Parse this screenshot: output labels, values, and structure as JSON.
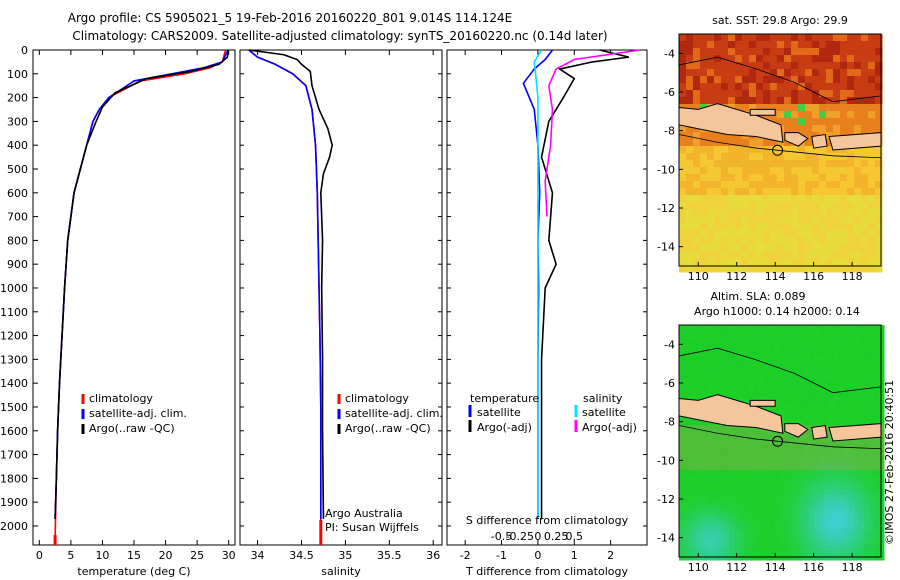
{
  "header": {
    "line1": "Argo profile: CS 5905021_5 19-Feb-2016 20160220_801 9.014S 114.124E",
    "line2": "Climatology: CARS2009. Satellite-adjusted climatology: synTS_20160220.nc (0.14d later)"
  },
  "colors": {
    "climatology": "#ff0000",
    "satellite": "#0000ff",
    "argo": "#000000",
    "sat_salinity": "#00e5ff",
    "argo_salinity": "#ff00ff",
    "land": "#f5c59b"
  },
  "chart_data": [
    {
      "type": "line",
      "id": "temperature",
      "xlabel": "temperature (deg C)",
      "ylabel": "",
      "xlim": [
        -1,
        31
      ],
      "ylim": [
        2080,
        0
      ],
      "xticks": [
        "0",
        "5",
        "10",
        "15",
        "20",
        "25",
        "30"
      ],
      "yticks": [
        "0",
        "100",
        "200",
        "300",
        "400",
        "500",
        "600",
        "700",
        "800",
        "900",
        "1000",
        "1100",
        "1200",
        "1300",
        "1400",
        "1500",
        "1600",
        "1700",
        "1800",
        "1900",
        "2000"
      ],
      "legend": {
        "placement": "lower-center",
        "entries": [
          "climatology",
          "satellite-adj. clim.",
          "Argo(..raw -QC)"
        ]
      },
      "series": [
        {
          "name": "climatology",
          "x": [
            29.5,
            29,
            27,
            23,
            16,
            11,
            9.5,
            8.5,
            7.5,
            6.5,
            5.5,
            5,
            4.5,
            4,
            3.6,
            3.2,
            2.9,
            2.7,
            2.5
          ],
          "y": [
            0,
            50,
            75,
            100,
            130,
            200,
            250,
            300,
            400,
            500,
            600,
            700,
            800,
            1000,
            1200,
            1400,
            1600,
            1800,
            2060
          ]
        },
        {
          "name": "satellite-adj. clim.",
          "x": [
            29.9,
            29,
            26,
            21,
            15,
            11,
            9.5,
            8.5,
            7.5,
            6.5,
            5.5,
            5,
            4.5,
            4,
            3.6,
            3.2,
            2.9,
            2.7,
            2.5
          ],
          "y": [
            0,
            50,
            75,
            100,
            130,
            200,
            250,
            300,
            400,
            500,
            600,
            700,
            800,
            1000,
            1200,
            1400,
            1600,
            1800,
            1970
          ]
        },
        {
          "name": "Argo(..raw -QC)",
          "x": [
            29.9,
            29.8,
            28.5,
            24,
            17,
            12,
            10,
            9,
            7.5,
            6.5,
            5.5,
            5,
            4.5,
            4,
            3.6,
            3.2,
            2.9,
            2.7,
            2.5
          ],
          "y": [
            0,
            30,
            60,
            90,
            120,
            180,
            240,
            300,
            400,
            500,
            600,
            700,
            800,
            1000,
            1200,
            1400,
            1600,
            1800,
            1970
          ]
        }
      ]
    },
    {
      "type": "line",
      "id": "salinity",
      "xlabel": "salinity",
      "xlim": [
        33.8,
        36.1
      ],
      "ylim": [
        2080,
        0
      ],
      "xticks": [
        "34",
        "34.5",
        "35",
        "35.5",
        "36"
      ],
      "legend": {
        "placement": "lower-center",
        "entries": [
          "climatology",
          "satellite-adj. clim.",
          "Argo(..raw -QC)"
        ]
      },
      "annotations": [
        "Argo Australia",
        "PI: Susan Wijffels"
      ],
      "series": [
        {
          "name": "climatology",
          "x": [
            33.9,
            34.0,
            34.2,
            34.4,
            34.55,
            34.62,
            34.66,
            34.68,
            34.69,
            34.7,
            34.71,
            34.72,
            34.72,
            34.72
          ],
          "y": [
            0,
            30,
            60,
            100,
            150,
            250,
            400,
            600,
            800,
            1000,
            1200,
            1500,
            1800,
            2060
          ]
        },
        {
          "name": "satellite-adj. clim.",
          "x": [
            33.9,
            34.0,
            34.2,
            34.4,
            34.55,
            34.62,
            34.66,
            34.68,
            34.69,
            34.7,
            34.71,
            34.72,
            34.72,
            34.72
          ],
          "y": [
            0,
            30,
            60,
            100,
            150,
            250,
            400,
            600,
            800,
            1000,
            1200,
            1500,
            1800,
            1970
          ]
        },
        {
          "name": "Argo(..raw -QC)",
          "x": [
            33.9,
            34.3,
            34.45,
            34.5,
            34.6,
            34.62,
            34.7,
            34.8,
            34.85,
            34.82,
            34.75,
            34.72,
            34.74,
            34.73,
            34.74,
            34.74,
            34.75
          ],
          "y": [
            0,
            20,
            40,
            60,
            90,
            150,
            250,
            330,
            400,
            450,
            520,
            600,
            800,
            1000,
            1300,
            1600,
            1970
          ]
        }
      ]
    },
    {
      "type": "line",
      "id": "differences",
      "xlabel": "T difference from climatology",
      "xlabel_top": "S difference from climatology",
      "xlim": [
        -2.5,
        3
      ],
      "ylim": [
        2080,
        0
      ],
      "xticks": [
        "-2",
        "-1",
        "0",
        "1",
        "2"
      ],
      "xticks_top": [
        "-0.5",
        "-0.25",
        "0",
        "0.25",
        "0.5"
      ],
      "legend_temperature": {
        "title": "temperature",
        "entries": [
          "satellite",
          "Argo(-adj)"
        ]
      },
      "legend_salinity": {
        "title": "salinity",
        "entries": [
          "satellite",
          "Argo(-adj)"
        ]
      },
      "series": [
        {
          "name": "temperature satellite",
          "x": [
            0.4,
            0.2,
            -0.1,
            -0.4,
            -0.1,
            0,
            0.05,
            0,
            0.02,
            0,
            0,
            0
          ],
          "y": [
            0,
            40,
            80,
            140,
            250,
            400,
            600,
            800,
            1000,
            1300,
            1600,
            1970
          ]
        },
        {
          "name": "temperature Argo(-adj)",
          "x": [
            1.7,
            2.5,
            1.5,
            0.6,
            1.0,
            0.7,
            0.3,
            0.1,
            0.4,
            0.3,
            0.5,
            0.2,
            0.1,
            0.1,
            0.1
          ],
          "y": [
            0,
            30,
            50,
            80,
            120,
            200,
            300,
            450,
            600,
            800,
            900,
            1000,
            1300,
            1600,
            1970
          ]
        },
        {
          "name": "salinity satellite",
          "x": [
            0.1,
            -0.1,
            -0.05,
            0.0,
            0.0,
            0.0,
            0.0,
            0.0,
            0.0
          ],
          "y": [
            0,
            50,
            120,
            200,
            400,
            700,
            1000,
            1500,
            1970
          ]
        },
        {
          "name": "salinity Argo(-adj)",
          "x": [
            2.8,
            1.0,
            0.5,
            0.3,
            0.4,
            0.35,
            0.2,
            0.25
          ],
          "y": [
            0,
            40,
            80,
            150,
            250,
            400,
            550,
            700
          ]
        }
      ]
    },
    {
      "type": "heatmap",
      "id": "sst-map",
      "title": "sat. SST: 29.8 Argo: 29.9",
      "xlim": [
        109,
        119.5
      ],
      "ylim": [
        -15,
        -3
      ],
      "xticks": [
        "110",
        "112",
        "114",
        "116",
        "118"
      ],
      "yticks": [
        "-4",
        "-6",
        "-8",
        "-10",
        "-12",
        "-14"
      ],
      "argo_position": [
        114.124,
        -9.014
      ]
    },
    {
      "type": "heatmap",
      "id": "sla-map",
      "title": "Altim. SLA: 0.089",
      "subtitle": "Argo h1000: 0.14 h2000: 0.14",
      "xlim": [
        109,
        119.5
      ],
      "ylim": [
        -15,
        -3
      ],
      "xticks": [
        "110",
        "112",
        "114",
        "116",
        "118"
      ],
      "yticks": [
        "-4",
        "-6",
        "-8",
        "-10",
        "-12",
        "-14"
      ],
      "argo_position": [
        114.124,
        -9.014
      ]
    }
  ],
  "footer": {
    "watermark": "©IMOS 27-Feb-2016 20:40:51"
  }
}
